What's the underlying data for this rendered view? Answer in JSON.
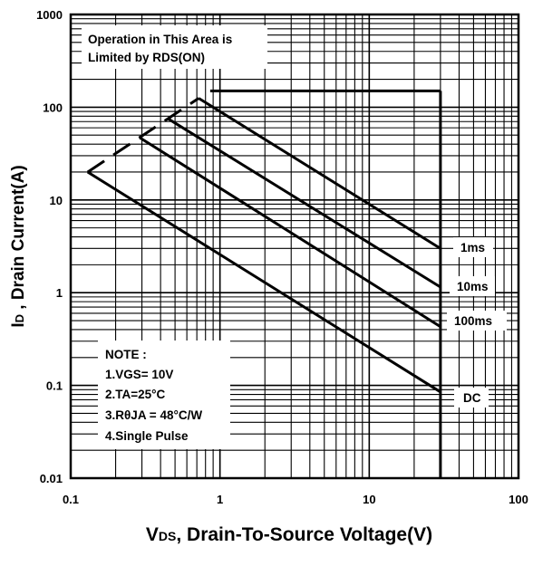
{
  "chart_data": {
    "type": "line",
    "xscale": "log",
    "yscale": "log",
    "xlim": [
      0.1,
      100
    ],
    "ylim": [
      0.01,
      1000
    ],
    "grid": true,
    "x_tick_labels": [
      "0.1",
      "1",
      "10",
      "100"
    ],
    "y_tick_labels": [
      "0.01",
      "0.1",
      "1",
      "10",
      "100",
      "1000"
    ],
    "xlabel": "VDS, Drain-To-Source Voltage(V)",
    "xlabel_prefix": "V",
    "xlabel_sub": "DS",
    "xlabel_rest": ", Drain-To-Source Voltage(V)",
    "ylabel": "ID , Drain Current(A)",
    "ylabel_prefix": "I",
    "ylabel_sub": "D",
    "ylabel_rest": " , Drain Current(A)",
    "annotations": {
      "region_line1": "Operation in This Area is",
      "region_line2": "Limited by RDS(ON)",
      "note_title": "NOTE :",
      "note_items": [
        "1.VGS= 10V",
        "2.TA=25°C",
        "3.RθJA = 48°C/W",
        "4.Single Pulse"
      ]
    },
    "series": [
      {
        "name": "1ms",
        "x": [
          0.72,
          30
        ],
        "y": [
          125,
          3
        ]
      },
      {
        "name": "10ms",
        "x": [
          0.45,
          30
        ],
        "y": [
          75,
          1.15
        ]
      },
      {
        "name": "100ms",
        "x": [
          0.29,
          30
        ],
        "y": [
          47,
          0.43
        ]
      },
      {
        "name": "DC",
        "x": [
          0.13,
          30
        ],
        "y": [
          20,
          0.085
        ]
      }
    ],
    "rds_on_limit": {
      "x": [
        0.13,
        0.72
      ],
      "y": [
        20,
        125
      ]
    },
    "current_limit": {
      "x": [
        0.86,
        30
      ],
      "y": [
        150,
        150
      ]
    },
    "voltage_limit": {
      "x": [
        30,
        30
      ],
      "y": [
        150,
        0.01
      ]
    }
  }
}
